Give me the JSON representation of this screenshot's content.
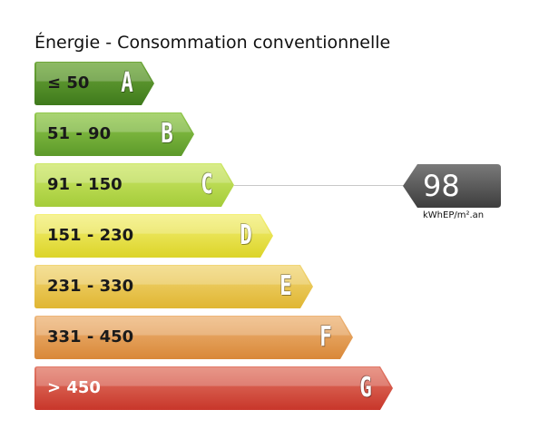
{
  "title": "Énergie - Consommation conventionnelle",
  "bands": [
    {
      "letter": "A",
      "range": "≤ 50",
      "color_top": "#6fa83a",
      "color_bottom": "#3f7a1c",
      "text_color": "dark"
    },
    {
      "letter": "B",
      "range": "51 - 90",
      "color_top": "#93c94c",
      "color_bottom": "#5c9a2a",
      "text_color": "dark"
    },
    {
      "letter": "C",
      "range": "91 - 150",
      "color_top": "#cfe86a",
      "color_bottom": "#a4cc3a",
      "text_color": "dark"
    },
    {
      "letter": "D",
      "range": "151 - 230",
      "color_top": "#f4f07a",
      "color_bottom": "#dcd428",
      "text_color": "dark"
    },
    {
      "letter": "E",
      "range": "231 - 330",
      "color_top": "#f2d779",
      "color_bottom": "#e0b632",
      "text_color": "dark"
    },
    {
      "letter": "F",
      "range": "331 - 450",
      "color_top": "#eeb67a",
      "color_bottom": "#d98838",
      "text_color": "dark"
    },
    {
      "letter": "G",
      "range": "> 450",
      "color_top": "#e27a68",
      "color_bottom": "#c8362a",
      "text_color": "light"
    }
  ],
  "result": {
    "value": "98",
    "unit": "kWhEP/m².an",
    "band": "C",
    "color_top": "#7a7a7a",
    "color_bottom": "#3d3d3d"
  }
}
